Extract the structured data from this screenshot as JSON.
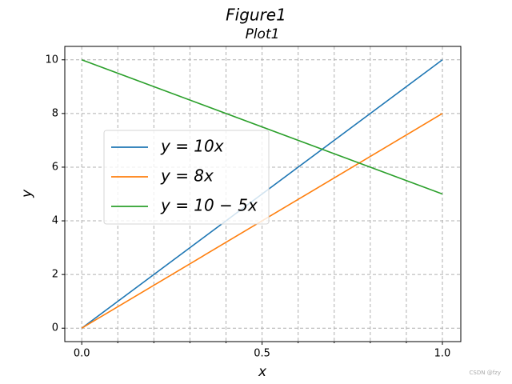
{
  "chart_data": {
    "type": "line",
    "suptitle": "Figure1",
    "title": "Plot1",
    "xlabel": "x",
    "ylabel": "y",
    "x": [
      0,
      1
    ],
    "series": [
      {
        "name": "y = 10x",
        "color": "#1f77b4",
        "values": [
          0,
          10
        ]
      },
      {
        "name": "y = 8x",
        "color": "#ff7f0e",
        "values": [
          0,
          8
        ]
      },
      {
        "name": "y = 10 − 5x",
        "color": "#2ca02c",
        "values": [
          10,
          5
        ]
      }
    ],
    "xlim": [
      -0.047,
      1.051
    ],
    "ylim": [
      -0.5,
      10.5
    ],
    "xticks": [
      {
        "value": 0,
        "label": "0.0"
      },
      0.5,
      {
        "value": 1,
        "label": "1.0"
      }
    ],
    "xminorticks": [
      0.1,
      0.2,
      0.3,
      0.4,
      0.6,
      0.7,
      0.8,
      0.9
    ],
    "yticks": [
      0,
      2,
      4,
      6,
      8,
      10
    ],
    "grid": true,
    "legend_loc": "center left",
    "watermark": "CSDN @fzy"
  }
}
